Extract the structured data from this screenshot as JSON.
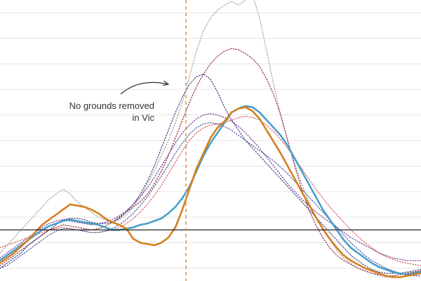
{
  "chart_data": {
    "type": "line",
    "title": "",
    "xlabel": "",
    "ylabel": "",
    "grid": true,
    "ylim": [
      -0.5,
      10.5
    ],
    "xlim": [
      0,
      60
    ],
    "baseline_y": 1.5,
    "event_x": 26.5,
    "annotation": {
      "line1": "No grounds removed",
      "line2": "in Vic"
    },
    "colors": {
      "highlight_a": "#4a9fc9",
      "highlight_b": "#d6801f",
      "event_line": "#e09a50",
      "grid": "#e5e5e5",
      "baseline": "#222222"
    },
    "series": [
      {
        "color": "#4a9fc9",
        "style": "solid",
        "values": [
          0.3,
          0.5,
          0.7,
          0.9,
          1.1,
          1.3,
          1.5,
          1.65,
          1.75,
          1.85,
          1.9,
          1.85,
          1.8,
          1.75,
          1.7,
          1.6,
          1.5,
          1.5,
          1.55,
          1.6,
          1.7,
          1.75,
          1.85,
          1.95,
          2.15,
          2.4,
          2.75,
          3.2,
          3.8,
          4.4,
          4.9,
          5.3,
          5.7,
          6.1,
          6.25,
          6.35,
          6.3,
          6.1,
          5.8,
          5.5,
          5.2,
          4.8,
          4.3,
          3.8,
          3.3,
          2.8,
          2.3,
          1.9,
          1.5,
          1.1,
          0.8,
          0.6,
          0.4,
          0.2,
          0.05,
          -0.05,
          -0.15,
          -0.2,
          -0.25,
          -0.2,
          -0.15
        ]
      },
      {
        "color": "#d6801f",
        "style": "solid",
        "values": [
          0.2,
          0.4,
          0.6,
          0.85,
          1.1,
          1.4,
          1.7,
          1.9,
          2.1,
          2.3,
          2.5,
          2.45,
          2.4,
          2.3,
          2.15,
          1.95,
          1.8,
          1.7,
          1.55,
          1.15,
          1.0,
          0.95,
          0.9,
          1.0,
          1.2,
          1.6,
          2.3,
          3.1,
          3.9,
          4.5,
          5.1,
          5.5,
          5.75,
          6.1,
          6.25,
          6.3,
          6.15,
          5.85,
          5.4,
          4.95,
          4.5,
          4.0,
          3.5,
          3.0,
          2.5,
          2.0,
          1.55,
          1.15,
          0.8,
          0.5,
          0.3,
          0.15,
          0.0,
          -0.1,
          -0.2,
          -0.3,
          -0.35,
          -0.35,
          -0.3,
          -0.25,
          -0.2
        ]
      },
      {
        "color": "#999999",
        "style": "dotted",
        "values": [
          0.6,
          0.9,
          1.2,
          1.5,
          1.8,
          2.1,
          2.4,
          2.7,
          2.9,
          3.1,
          2.9,
          2.6,
          2.4,
          2.2,
          2.0,
          1.9,
          1.8,
          1.9,
          2.1,
          2.4,
          2.8,
          3.3,
          3.8,
          4.4,
          5.0,
          5.7,
          6.5,
          7.5,
          8.5,
          9.3,
          9.8,
          10.1,
          10.3,
          10.45,
          10.3,
          10.5,
          10.7,
          9.8,
          8.5,
          7.2,
          6.0,
          5.0,
          4.1,
          3.3,
          2.6,
          2.0,
          1.5,
          1.1,
          0.7,
          0.4,
          0.2,
          0.0,
          -0.1,
          -0.2,
          -0.3,
          -0.35,
          -0.3,
          -0.25,
          -0.2,
          -0.15,
          -0.1
        ]
      },
      {
        "color": "#8b1a2b",
        "style": "dotted",
        "values": [
          0.1,
          0.3,
          0.5,
          0.7,
          0.9,
          1.1,
          1.3,
          1.5,
          1.6,
          1.7,
          1.65,
          1.6,
          1.55,
          1.5,
          1.55,
          1.65,
          1.8,
          2.0,
          2.2,
          2.4,
          2.6,
          2.9,
          3.3,
          3.8,
          4.4,
          5.1,
          5.8,
          6.5,
          7.1,
          7.6,
          8.0,
          8.3,
          8.5,
          8.6,
          8.55,
          8.4,
          8.2,
          7.9,
          7.4,
          6.8,
          6.0,
          5.0,
          4.0,
          3.1,
          2.3,
          1.7,
          1.2,
          0.8,
          0.5,
          0.3,
          0.15,
          0.0,
          -0.1,
          -0.2,
          -0.25,
          -0.3,
          -0.3,
          -0.25,
          -0.2,
          -0.15,
          -0.1
        ]
      },
      {
        "color": "#2c2d72",
        "style": "dotted",
        "values": [
          0.0,
          0.2,
          0.4,
          0.6,
          0.9,
          1.1,
          1.3,
          1.5,
          1.7,
          1.9,
          1.95,
          1.95,
          1.9,
          1.8,
          1.75,
          1.75,
          1.8,
          1.95,
          2.2,
          2.5,
          2.9,
          3.4,
          4.0,
          4.7,
          5.4,
          6.1,
          6.7,
          7.2,
          7.5,
          7.6,
          7.4,
          6.9,
          6.3,
          5.8,
          5.4,
          5.0,
          4.7,
          4.4,
          4.1,
          3.8,
          3.5,
          3.2,
          2.9,
          2.6,
          2.3,
          2.0,
          1.7,
          1.4,
          1.1,
          0.8,
          0.5,
          0.3,
          0.1,
          -0.05,
          -0.15,
          -0.2,
          -0.2,
          -0.2,
          -0.15,
          -0.1,
          -0.05
        ]
      },
      {
        "color": "#6d2f8e",
        "style": "dotted",
        "values": [
          0.4,
          0.6,
          0.8,
          1.0,
          1.2,
          1.4,
          1.6,
          1.75,
          1.85,
          1.9,
          1.85,
          1.8,
          1.75,
          1.7,
          1.75,
          1.8,
          1.9,
          2.05,
          2.25,
          2.5,
          2.8,
          3.15,
          3.55,
          4.0,
          4.45,
          4.9,
          5.3,
          5.6,
          5.85,
          6.0,
          6.05,
          6.0,
          5.9,
          5.75,
          5.55,
          5.3,
          5.0,
          4.7,
          4.35,
          4.0,
          3.65,
          3.3,
          3.0,
          2.7,
          2.45,
          2.2,
          2.0,
          1.8,
          1.6,
          1.4,
          1.2,
          1.05,
          0.9,
          0.75,
          0.6,
          0.5,
          0.4,
          0.35,
          0.3,
          0.3,
          0.3
        ]
      },
      {
        "color": "#d85050",
        "style": "dotted",
        "values": [
          0.8,
          0.9,
          1.0,
          1.1,
          1.2,
          1.3,
          1.4,
          1.5,
          1.55,
          1.6,
          1.55,
          1.5,
          1.45,
          1.4,
          1.4,
          1.45,
          1.5,
          1.6,
          1.75,
          1.95,
          2.2,
          2.5,
          2.85,
          3.25,
          3.7,
          4.15,
          4.6,
          5.0,
          5.3,
          5.5,
          5.6,
          5.65,
          5.7,
          5.8,
          5.9,
          5.95,
          5.9,
          5.8,
          5.6,
          5.35,
          5.05,
          4.7,
          4.3,
          3.9,
          3.5,
          3.1,
          2.75,
          2.4,
          2.1,
          1.8,
          1.5,
          1.25,
          1.0,
          0.8,
          0.6,
          0.45,
          0.35,
          0.25,
          0.2,
          0.15,
          0.1
        ]
      },
      {
        "color": "#3b4a96",
        "style": "dotted",
        "values": [
          0.0,
          0.1,
          0.3,
          0.5,
          0.7,
          0.9,
          1.1,
          1.3,
          1.45,
          1.55,
          1.55,
          1.5,
          1.45,
          1.4,
          1.4,
          1.45,
          1.55,
          1.7,
          1.9,
          2.15,
          2.45,
          2.8,
          3.2,
          3.6,
          4.05,
          4.5,
          4.9,
          5.25,
          5.5,
          5.65,
          5.7,
          5.65,
          5.55,
          5.4,
          5.2,
          5.0,
          4.8,
          4.6,
          4.4,
          4.2,
          3.95,
          3.7,
          3.4,
          3.1,
          2.8,
          2.5,
          2.2,
          1.9,
          1.6,
          1.3,
          1.0,
          0.75,
          0.5,
          0.3,
          0.15,
          0.0,
          -0.1,
          -0.2,
          -0.25,
          -0.3,
          -0.3
        ]
      }
    ]
  }
}
